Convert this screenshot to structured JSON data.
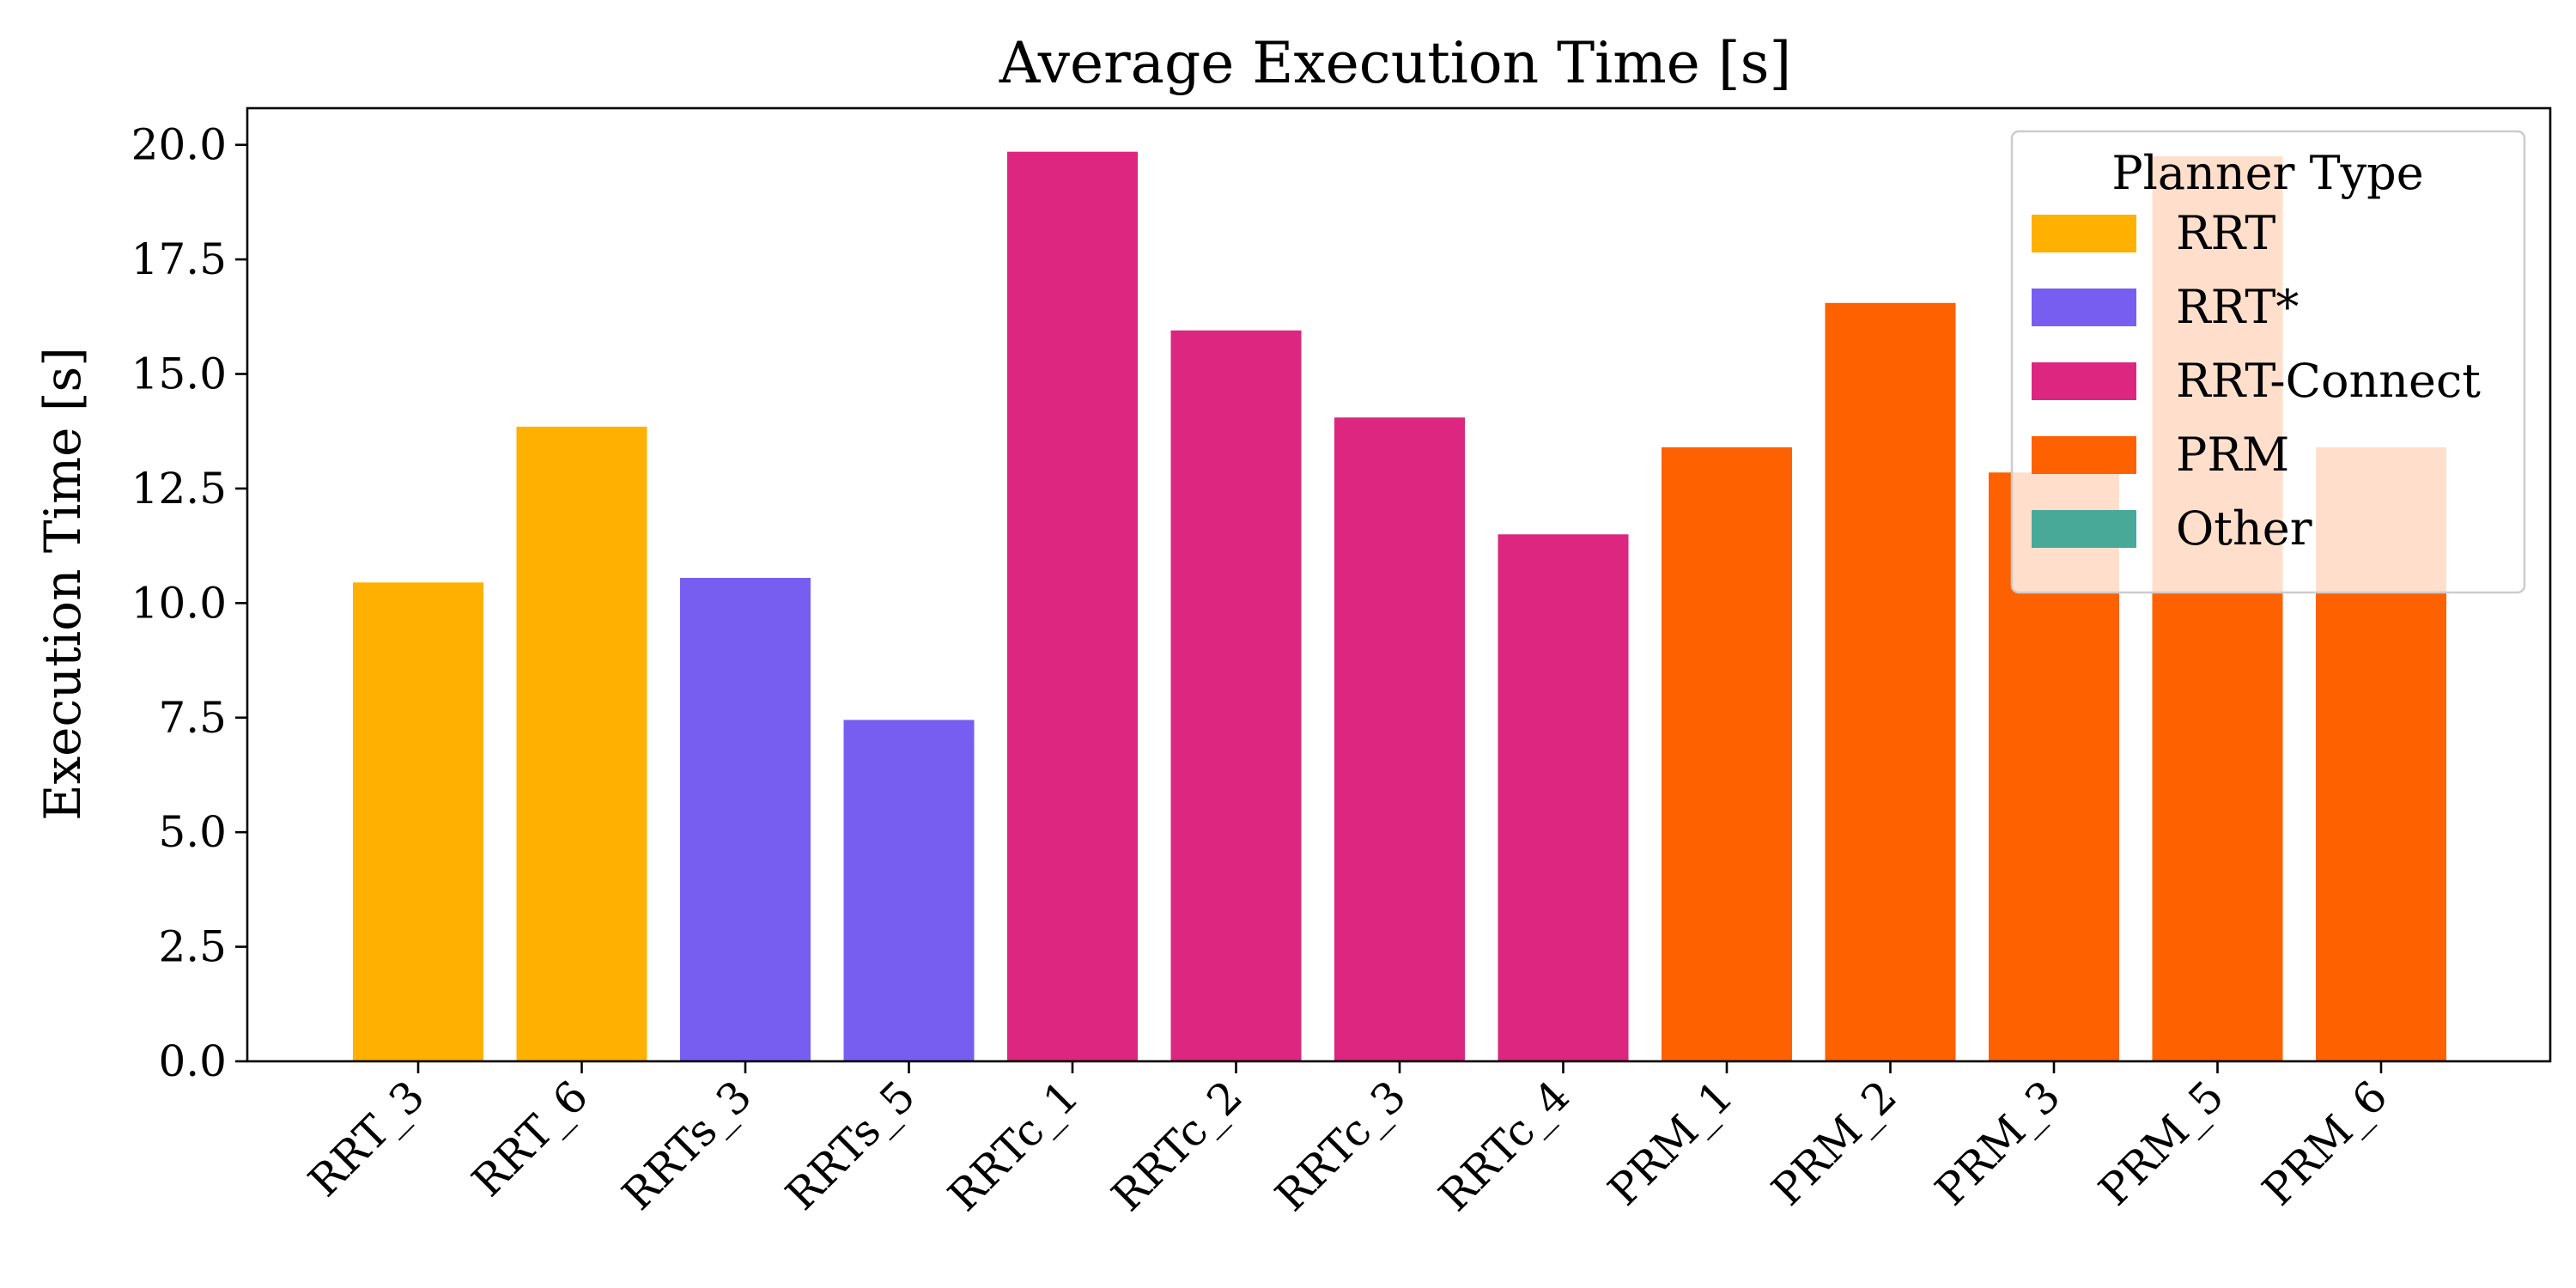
{
  "chart_data": {
    "type": "bar",
    "title": "Average Execution Time [s]",
    "xlabel": "",
    "ylabel": "Execution Time [s]",
    "categories": [
      "RRT_3",
      "RRT_6",
      "RRTs_3",
      "RRTs_5",
      "RRTc_1",
      "RRTc_2",
      "RRTc_3",
      "RRTc_4",
      "PRM_1",
      "PRM_2",
      "PRM_3",
      "PRM_5",
      "PRM_6"
    ],
    "values": [
      10.45,
      13.85,
      10.55,
      7.45,
      19.85,
      15.95,
      14.05,
      11.5,
      13.4,
      16.55,
      12.85,
      19.75,
      13.4
    ],
    "groups": [
      "RRT",
      "RRT",
      "RRT*",
      "RRT*",
      "RRT-Connect",
      "RRT-Connect",
      "RRT-Connect",
      "RRT-Connect",
      "PRM",
      "PRM",
      "PRM",
      "PRM",
      "PRM"
    ],
    "ylim": [
      0,
      20.8
    ],
    "yticks": [
      "0.0",
      "2.5",
      "5.0",
      "7.5",
      "10.0",
      "12.5",
      "15.0",
      "17.5",
      "20.0"
    ],
    "grid": false,
    "legend": {
      "title": "Planner Type",
      "placement": "top-right",
      "entries": [
        {
          "label": "RRT",
          "color": "#FFB000"
        },
        {
          "label": "RRT*",
          "color": "#785EF0"
        },
        {
          "label": "RRT-Connect",
          "color": "#DC267F"
        },
        {
          "label": "PRM",
          "color": "#FE6100"
        },
        {
          "label": "Other",
          "color": "#48A999"
        }
      ]
    }
  }
}
